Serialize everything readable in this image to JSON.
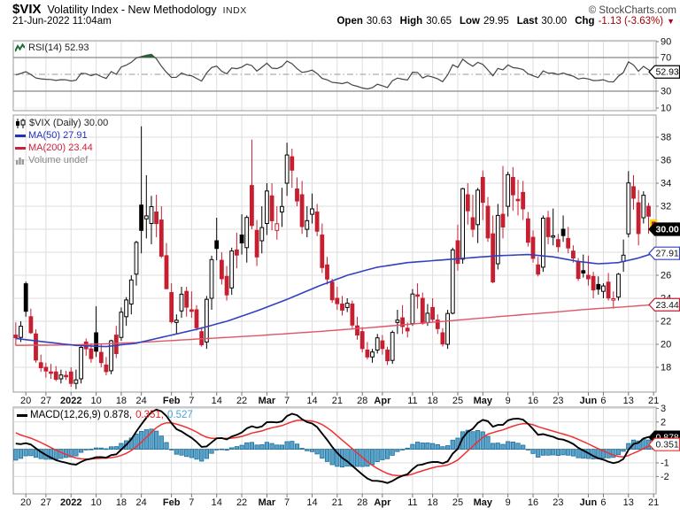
{
  "header": {
    "symbol": "$VIX",
    "title": "Volatility Index - New Methodology",
    "exchange": "INDX",
    "copyright": "© StockCharts.com",
    "datetime": "21-Jun-2022 11:04am",
    "quote": {
      "open_label": "Open",
      "open": "30.63",
      "high_label": "High",
      "high": "30.65",
      "low_label": "Low",
      "low": "29.95",
      "last_label": "Last",
      "last": "30.00",
      "chg_label": "Chg",
      "chg": "-1.13 (-3.63%)",
      "chg_arrow": "▼"
    }
  },
  "rsi_panel": {
    "legend": "RSI(14) 52.93",
    "value_label": "52.93"
  },
  "main_panel": {
    "legend_symbol": "$VIX (Daily) 30.00",
    "legend_ma50": "MA(50) 27.91",
    "legend_ma200": "MA(200) 23.44",
    "legend_volume": "Volume undef",
    "last_label": "30.00",
    "ma50_label": "27.91",
    "ma200_label": "23.44"
  },
  "macd_panel": {
    "legend_macd": "MACD(12,26,9) 0.878,",
    "legend_signal": "0.351,",
    "legend_hist": "0.527",
    "macd_label": "0.878",
    "signal_label": "0.351"
  },
  "colors": {
    "candle_red": "#c51f30",
    "candle_black": "#000000",
    "ma50_blue": "#3340c0",
    "ma200_red": "#e05565",
    "rsi_line": "#444444",
    "overbought_green": "#1b6e38",
    "hist_fill": "#57a2ca",
    "hist_stroke": "#1e6e99",
    "signal_red": "#f03030",
    "macd_black": "#000000",
    "highlight_yellow": "#ffd400",
    "grid": "#dddddd",
    "grid_light": "#ececec",
    "band": "#888888",
    "border": "#999999",
    "axis_text": "#111111"
  },
  "chart_data": {
    "type": "candlestick",
    "symbol": "$VIX",
    "timeframe": "Daily",
    "rsi_period": 14,
    "macd_params": [
      12,
      26,
      9
    ],
    "main_ylim": [
      15.8,
      39.9
    ],
    "rsi_axis_values": [
      90,
      70,
      30,
      10
    ],
    "rsi_bands": {
      "over": 70,
      "under": 30,
      "mid": 50
    },
    "main_axis_values": [
      38,
      36,
      34,
      32,
      26,
      24,
      22,
      20,
      18
    ],
    "macd_axis_values": [
      3,
      2,
      -1,
      -2
    ],
    "last_values": {
      "price": 30.0,
      "ma50": 27.91,
      "ma200": 23.44,
      "rsi": 52.93,
      "macd": 0.878,
      "signal": 0.351,
      "hist": 0.527
    },
    "ticks": [
      [
        2,
        "20"
      ],
      [
        6,
        "27"
      ],
      [
        11,
        "2022"
      ],
      [
        16,
        "10"
      ],
      [
        21,
        "18"
      ],
      [
        25,
        "24"
      ],
      [
        31,
        "Feb"
      ],
      [
        35,
        "7"
      ],
      [
        40,
        "14"
      ],
      [
        45,
        "22"
      ],
      [
        50,
        "Mar"
      ],
      [
        54,
        "7"
      ],
      [
        59,
        "14"
      ],
      [
        64,
        "21"
      ],
      [
        69,
        "28"
      ],
      [
        73,
        "Apr"
      ],
      [
        79,
        "11"
      ],
      [
        83,
        "18"
      ],
      [
        88,
        "25"
      ],
      [
        93,
        "May"
      ],
      [
        98,
        "9"
      ],
      [
        103,
        "16"
      ],
      [
        108,
        "23"
      ],
      [
        114,
        "Jun"
      ],
      [
        117,
        "6"
      ],
      [
        122,
        "13"
      ],
      [
        127,
        "21"
      ]
    ],
    "bold_ticks": [
      "2022",
      "Feb",
      "Mar",
      "Apr",
      "May",
      "Jun"
    ],
    "preamble_closes": [
      16.4,
      16.9,
      17.2,
      16.5,
      17.3,
      18.6,
      17.7,
      16.5,
      16.3,
      17.0,
      16.5,
      17.9,
      18.6,
      19.9,
      22.0,
      28.6,
      23.0,
      27.2,
      31.1,
      28.0,
      30.7,
      27.2,
      21.9,
      19.9,
      21.6,
      18.7,
      20.3,
      21.9,
      19.3
    ],
    "ohlc": [
      [
        20.8,
        21.9,
        19.9,
        20.57
      ],
      [
        20.6,
        22.0,
        20.2,
        21.57
      ],
      [
        25.26,
        25.44,
        22.4,
        22.87
      ],
      [
        22.4,
        23.1,
        20.9,
        21.01
      ],
      [
        20.9,
        21.3,
        18.4,
        18.63
      ],
      [
        18.4,
        19.1,
        17.6,
        17.96
      ],
      [
        18.0,
        18.4,
        17.1,
        17.68
      ],
      [
        17.6,
        18.3,
        17.0,
        17.54
      ],
      [
        17.6,
        18.1,
        16.8,
        16.95
      ],
      [
        17.0,
        17.8,
        16.6,
        17.33
      ],
      [
        17.3,
        17.7,
        16.9,
        17.22
      ],
      [
        17.6,
        18.0,
        16.3,
        16.6
      ],
      [
        16.6,
        17.8,
        16.1,
        16.91
      ],
      [
        17.0,
        20.0,
        16.6,
        19.73
      ],
      [
        20.2,
        20.5,
        19.0,
        19.61
      ],
      [
        19.6,
        20.1,
        18.4,
        18.76
      ],
      [
        21.0,
        23.3,
        18.9,
        19.4
      ],
      [
        19.3,
        20.0,
        18.0,
        18.41
      ],
      [
        18.2,
        18.9,
        17.3,
        17.62
      ],
      [
        17.7,
        20.4,
        17.4,
        20.31
      ],
      [
        20.8,
        21.6,
        18.8,
        19.19
      ],
      [
        20.6,
        23.2,
        20.3,
        22.79
      ],
      [
        22.4,
        24.1,
        21.6,
        23.85
      ],
      [
        23.5,
        26.0,
        22.6,
        25.59
      ],
      [
        26.1,
        29.0,
        25.1,
        28.85
      ],
      [
        32.1,
        38.94,
        27.9,
        29.9
      ],
      [
        30.9,
        34.7,
        29.2,
        31.16
      ],
      [
        30.5,
        32.9,
        28.7,
        31.96
      ],
      [
        31.5,
        33.0,
        29.3,
        30.49
      ],
      [
        30.8,
        32.0,
        27.5,
        27.66
      ],
      [
        27.7,
        28.8,
        24.8,
        24.83
      ],
      [
        24.5,
        25.3,
        21.8,
        21.96
      ],
      [
        21.9,
        22.6,
        20.9,
        22.09
      ],
      [
        22.9,
        25.0,
        22.3,
        24.35
      ],
      [
        24.6,
        25.0,
        22.4,
        23.22
      ],
      [
        23.0,
        24.6,
        22.3,
        22.86
      ],
      [
        23.0,
        23.4,
        21.2,
        21.44
      ],
      [
        21.1,
        21.5,
        19.8,
        19.96
      ],
      [
        20.2,
        24.2,
        19.6,
        23.91
      ],
      [
        24.0,
        27.7,
        23.0,
        27.36
      ],
      [
        29.0,
        31.0,
        27.3,
        28.33
      ],
      [
        27.3,
        28.0,
        25.2,
        25.7
      ],
      [
        25.9,
        26.8,
        23.8,
        24.29
      ],
      [
        24.9,
        28.4,
        24.3,
        28.11
      ],
      [
        28.2,
        29.7,
        26.6,
        27.75
      ],
      [
        29.5,
        31.3,
        27.8,
        28.81
      ],
      [
        28.4,
        31.2,
        27.1,
        31.02
      ],
      [
        33.8,
        37.79,
        30.0,
        30.32
      ],
      [
        29.9,
        30.8,
        26.8,
        27.59
      ],
      [
        29.0,
        32.0,
        27.9,
        30.15
      ],
      [
        30.5,
        34.0,
        29.5,
        33.32
      ],
      [
        32.9,
        34.0,
        29.9,
        30.74
      ],
      [
        29.9,
        32.0,
        29.1,
        30.48
      ],
      [
        31.5,
        33.6,
        30.2,
        31.98
      ],
      [
        34.0,
        37.52,
        32.9,
        36.45
      ],
      [
        36.3,
        37.0,
        33.6,
        35.13
      ],
      [
        33.5,
        34.5,
        32.0,
        32.45
      ],
      [
        33.0,
        34.2,
        29.6,
        30.23
      ],
      [
        30.0,
        32.0,
        29.3,
        30.75
      ],
      [
        31.3,
        33.1,
        30.5,
        31.77
      ],
      [
        31.5,
        32.2,
        29.4,
        29.83
      ],
      [
        29.5,
        30.5,
        26.2,
        26.67
      ],
      [
        26.9,
        27.6,
        25.2,
        25.67
      ],
      [
        25.4,
        25.7,
        23.6,
        23.87
      ],
      [
        24.0,
        25.0,
        23.0,
        23.53
      ],
      [
        23.5,
        24.2,
        22.5,
        22.97
      ],
      [
        23.2,
        24.0,
        22.8,
        23.57
      ],
      [
        23.5,
        23.8,
        21.4,
        21.67
      ],
      [
        21.6,
        22.4,
        20.4,
        20.81
      ],
      [
        21.1,
        21.5,
        19.3,
        19.63
      ],
      [
        19.5,
        20.2,
        18.7,
        18.9
      ],
      [
        18.9,
        19.6,
        18.4,
        19.33
      ],
      [
        19.5,
        20.9,
        19.2,
        20.56
      ],
      [
        20.3,
        20.8,
        19.1,
        19.63
      ],
      [
        19.5,
        19.8,
        18.2,
        18.57
      ],
      [
        18.6,
        21.2,
        18.3,
        21.03
      ],
      [
        21.9,
        23.0,
        20.9,
        22.1
      ],
      [
        22.3,
        23.4,
        20.9,
        21.55
      ],
      [
        21.4,
        21.9,
        20.6,
        21.16
      ],
      [
        21.8,
        24.8,
        21.6,
        24.37
      ],
      [
        24.3,
        25.3,
        23.1,
        24.26
      ],
      [
        24.0,
        24.5,
        21.7,
        21.82
      ],
      [
        21.9,
        23.5,
        21.6,
        22.7
      ],
      [
        23.2,
        24.0,
        21.9,
        22.17
      ],
      [
        22.1,
        22.6,
        20.9,
        21.36
      ],
      [
        21.0,
        21.4,
        19.8,
        20.02
      ],
      [
        20.0,
        23.0,
        19.6,
        22.68
      ],
      [
        22.7,
        28.4,
        22.6,
        28.21
      ],
      [
        29.0,
        30.4,
        26.4,
        27.02
      ],
      [
        27.4,
        33.6,
        27.0,
        33.52
      ],
      [
        33.0,
        34.0,
        30.4,
        31.6
      ],
      [
        31.0,
        33.0,
        29.3,
        29.99
      ],
      [
        30.4,
        33.6,
        28.8,
        33.4
      ],
      [
        34.5,
        35.1,
        30.8,
        32.34
      ],
      [
        32.0,
        32.8,
        28.9,
        29.25
      ],
      [
        29.6,
        31.2,
        25.3,
        25.42
      ],
      [
        27.0,
        32.2,
        26.5,
        31.2
      ],
      [
        31.3,
        35.5,
        29.2,
        30.19
      ],
      [
        32.0,
        35.0,
        31.1,
        34.75
      ],
      [
        34.5,
        35.4,
        31.6,
        32.99
      ],
      [
        32.6,
        34.3,
        31.2,
        32.56
      ],
      [
        33.2,
        34.2,
        30.8,
        31.77
      ],
      [
        30.9,
        31.5,
        28.5,
        28.87
      ],
      [
        29.3,
        29.9,
        27.1,
        27.47
      ],
      [
        26.9,
        27.6,
        25.9,
        26.1
      ],
      [
        26.7,
        31.2,
        26.3,
        30.96
      ],
      [
        31.0,
        31.6,
        28.7,
        29.35
      ],
      [
        29.4,
        31.8,
        28.6,
        29.43
      ],
      [
        29.1,
        29.6,
        28.0,
        28.48
      ],
      [
        30.0,
        31.2,
        28.9,
        29.45
      ],
      [
        29.2,
        30.2,
        27.9,
        28.37
      ],
      [
        28.1,
        28.6,
        27.1,
        27.5
      ],
      [
        27.2,
        27.5,
        25.5,
        25.72
      ],
      [
        26.4,
        27.8,
        25.8,
        26.19
      ],
      [
        26.0,
        27.7,
        25.1,
        25.69
      ],
      [
        25.9,
        26.3,
        24.0,
        24.72
      ],
      [
        25.2,
        25.9,
        24.3,
        24.79
      ],
      [
        24.6,
        25.3,
        24.0,
        25.07
      ],
      [
        25.4,
        26.2,
        23.8,
        24.02
      ],
      [
        23.9,
        24.6,
        23.1,
        23.96
      ],
      [
        24.1,
        26.2,
        23.8,
        26.09
      ],
      [
        27.2,
        29.1,
        26.3,
        27.75
      ],
      [
        29.6,
        35.05,
        29.3,
        34.02
      ],
      [
        33.7,
        34.7,
        31.7,
        32.69
      ],
      [
        32.3,
        33.4,
        28.6,
        29.62
      ],
      [
        31.0,
        33.3,
        30.5,
        32.95
      ],
      [
        32.0,
        32.3,
        29.6,
        31.13
      ],
      [
        30.63,
        30.65,
        29.95,
        30.0
      ]
    ],
    "ma50": [
      [
        0,
        20.5
      ],
      [
        6,
        20.2
      ],
      [
        12,
        19.9
      ],
      [
        18,
        19.8
      ],
      [
        24,
        20.1
      ],
      [
        30,
        20.7
      ],
      [
        36,
        21.3
      ],
      [
        42,
        22.0
      ],
      [
        48,
        22.9
      ],
      [
        54,
        23.9
      ],
      [
        60,
        25.0
      ],
      [
        66,
        26.0
      ],
      [
        72,
        26.7
      ],
      [
        78,
        27.1
      ],
      [
        84,
        27.3
      ],
      [
        90,
        27.5
      ],
      [
        96,
        27.7
      ],
      [
        102,
        27.8
      ],
      [
        107,
        27.6
      ],
      [
        112,
        27.2
      ],
      [
        116,
        27.0
      ],
      [
        120,
        27.1
      ],
      [
        124,
        27.5
      ],
      [
        127,
        27.91
      ]
    ],
    "ma200": [
      [
        0,
        19.9
      ],
      [
        12,
        19.95
      ],
      [
        24,
        20.15
      ],
      [
        36,
        20.45
      ],
      [
        48,
        20.75
      ],
      [
        60,
        21.1
      ],
      [
        72,
        21.5
      ],
      [
        84,
        21.95
      ],
      [
        96,
        22.4
      ],
      [
        106,
        22.75
      ],
      [
        114,
        23.05
      ],
      [
        121,
        23.25
      ],
      [
        127,
        23.44
      ]
    ]
  }
}
